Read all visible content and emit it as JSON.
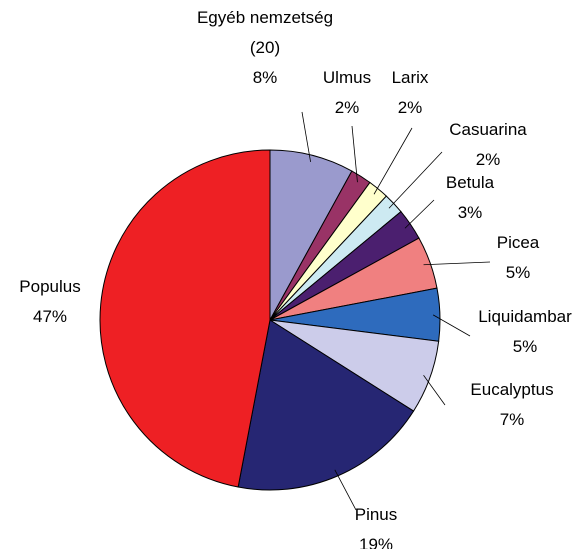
{
  "chart_data": {
    "type": "pie",
    "categories": [
      "Egyéb nemzetség (20)",
      "Ulmus",
      "Larix",
      "Casuarina",
      "Betula",
      "Picea",
      "Liquidambar",
      "Eucalyptus",
      "Pinus",
      "Populus"
    ],
    "values": [
      8,
      2,
      2,
      2,
      3,
      5,
      5,
      7,
      19,
      47
    ],
    "value_labels": [
      "8%",
      "2%",
      "2%",
      "2%",
      "3%",
      "5%",
      "5%",
      "7%",
      "19%",
      "47%"
    ],
    "colors": [
      "#9a9acd",
      "#993366",
      "#ffffcc",
      "#cdeaf2",
      "#4b1f6f",
      "#f08080",
      "#2e6bbd",
      "#ccccea",
      "#262673",
      "#ee2024"
    ]
  }
}
